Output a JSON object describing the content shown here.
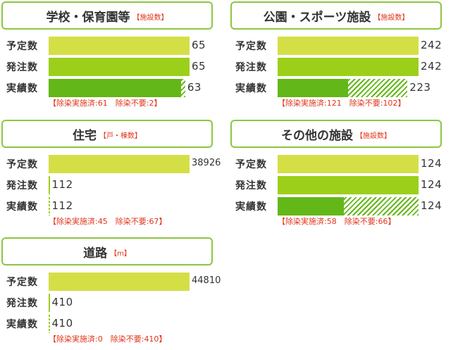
{
  "units": {
    "facilities": "【施設数】",
    "houses": "【戸・棟数】",
    "meters": "【m】"
  },
  "note_labels": {
    "done": "除染実施済:",
    "none": "除染不要:"
  },
  "row_labels": {
    "plan": "予定数",
    "order": "発注数",
    "done": "実績数"
  },
  "colors": {
    "plan": "#d4df46",
    "order": "#9ccf1a",
    "done": "#64b718",
    "note": "#e0341a",
    "border": "#8cc63f"
  },
  "chart_data": [
    {
      "type": "bar",
      "title": "学校・保育園等",
      "unit": "【施設数】",
      "plan": 65,
      "order": 65,
      "done": 63,
      "decontaminated": 61,
      "not_required": 2,
      "plan_label": "65",
      "order_label": "65",
      "done_label": "63",
      "note_done": "61",
      "note_none": "2"
    },
    {
      "type": "bar",
      "title": "公園・スポーツ施設",
      "unit": "【施設数】",
      "plan": 242,
      "order": 242,
      "done": 223,
      "decontaminated": 121,
      "not_required": 102,
      "plan_label": "242",
      "order_label": "242",
      "done_label": "223",
      "note_done": "121",
      "note_none": "102"
    },
    {
      "type": "bar",
      "title": "住宅",
      "unit": "【戸・棟数】",
      "plan": 38926,
      "order": 112,
      "done": 112,
      "decontaminated": 45,
      "not_required": 67,
      "plan_label": "38926",
      "order_label": "112",
      "done_label": "112",
      "note_done": "45",
      "note_none": "67"
    },
    {
      "type": "bar",
      "title": "その他の施設",
      "unit": "【施設数】",
      "plan": 124,
      "order": 124,
      "done": 124,
      "decontaminated": 58,
      "not_required": 66,
      "plan_label": "124",
      "order_label": "124",
      "done_label": "124",
      "note_done": "58",
      "note_none": "66"
    },
    {
      "type": "bar",
      "title": "道路",
      "unit": "【m】",
      "plan": 44810,
      "order": 410,
      "done": 410,
      "decontaminated": 0,
      "not_required": 410,
      "plan_label": "44810",
      "order_label": "410",
      "done_label": "410",
      "note_done": "0",
      "note_none": "410"
    }
  ]
}
